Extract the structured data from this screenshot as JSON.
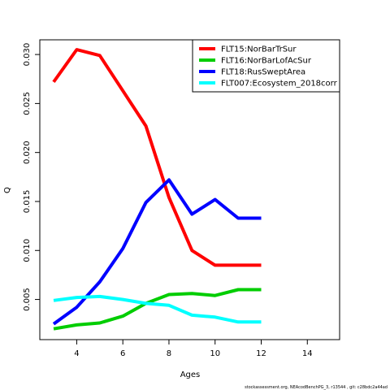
{
  "chart_data": {
    "type": "line",
    "title": "",
    "xlabel": "Ages",
    "ylabel": "Q",
    "xlim": [
      2.4,
      15.4
    ],
    "ylim": [
      0.0009,
      0.0315
    ],
    "x_ticks": [
      4,
      6,
      8,
      10,
      12,
      14
    ],
    "y_ticks": [
      0.005,
      0.01,
      0.015,
      0.02,
      0.025,
      0.03
    ],
    "y_tick_labels": [
      "0.005",
      "0.010",
      "0.015",
      "0.020",
      "0.025",
      "0.030"
    ],
    "legend_position": "top-right",
    "grid": false,
    "series": [
      {
        "name": "FLT15:NorBarTrSur",
        "color": "#ff0000",
        "x": [
          3,
          4,
          5,
          6,
          7,
          8,
          9,
          10,
          11,
          12
        ],
        "values": [
          0.0272,
          0.0305,
          0.0299,
          0.0263,
          0.0227,
          0.0154,
          0.01,
          0.0085,
          0.0085,
          0.0085
        ]
      },
      {
        "name": "FLT16:NorBarLofAcSur",
        "color": "#00cd00",
        "x": [
          3,
          4,
          5,
          6,
          7,
          8,
          9,
          10,
          11,
          12
        ],
        "values": [
          0.002,
          0.0024,
          0.0026,
          0.0033,
          0.0046,
          0.0055,
          0.0056,
          0.0054,
          0.006,
          0.006
        ]
      },
      {
        "name": "FLT18:RusSweptArea",
        "color": "#0000ff",
        "x": [
          3,
          4,
          5,
          6,
          7,
          8,
          9,
          10,
          11,
          12
        ],
        "values": [
          0.0025,
          0.0042,
          0.0068,
          0.0102,
          0.0149,
          0.0172,
          0.0137,
          0.0152,
          0.0133,
          0.0133
        ]
      },
      {
        "name": "FLT007:Ecosystem_2018corr",
        "color": "#00ffff",
        "x": [
          3,
          4,
          5,
          6,
          7,
          8,
          9,
          10,
          11,
          12
        ],
        "values": [
          0.0049,
          0.0052,
          0.0053,
          0.005,
          0.0046,
          0.0044,
          0.0034,
          0.0032,
          0.0027,
          0.0027
        ]
      }
    ]
  },
  "footer": "stockassessment.org, NEAcodBenchPG_3, r13544 , git: c28bdc2a44ad"
}
